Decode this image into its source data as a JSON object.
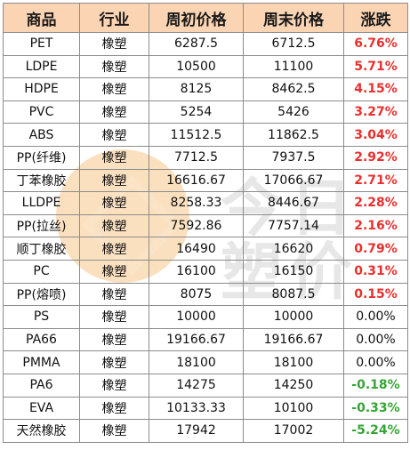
{
  "table": {
    "headers": [
      "商品",
      "行业",
      "周初价格",
      "周末价格",
      "涨跌"
    ],
    "rows": [
      {
        "name": "PET",
        "industry": "橡塑",
        "start": "6287.5",
        "end": "6712.5",
        "change": "6.76%",
        "dir": "pos"
      },
      {
        "name": "LDPE",
        "industry": "橡塑",
        "start": "10500",
        "end": "11100",
        "change": "5.71%",
        "dir": "pos"
      },
      {
        "name": "HDPE",
        "industry": "橡塑",
        "start": "8125",
        "end": "8462.5",
        "change": "4.15%",
        "dir": "pos"
      },
      {
        "name": "PVC",
        "industry": "橡塑",
        "start": "5254",
        "end": "5426",
        "change": "3.27%",
        "dir": "pos"
      },
      {
        "name": "ABS",
        "industry": "橡塑",
        "start": "11512.5",
        "end": "11862.5",
        "change": "3.04%",
        "dir": "pos"
      },
      {
        "name": "PP(纤维)",
        "industry": "橡塑",
        "start": "7712.5",
        "end": "7937.5",
        "change": "2.92%",
        "dir": "pos"
      },
      {
        "name": "丁苯橡胶",
        "industry": "橡塑",
        "start": "16616.67",
        "end": "17066.67",
        "change": "2.71%",
        "dir": "pos"
      },
      {
        "name": "LLDPE",
        "industry": "橡塑",
        "start": "8258.33",
        "end": "8446.67",
        "change": "2.28%",
        "dir": "pos"
      },
      {
        "name": "PP(拉丝)",
        "industry": "橡塑",
        "start": "7592.86",
        "end": "7757.14",
        "change": "2.16%",
        "dir": "pos"
      },
      {
        "name": "顺丁橡胶",
        "industry": "橡塑",
        "start": "16490",
        "end": "16620",
        "change": "0.79%",
        "dir": "pos"
      },
      {
        "name": "PC",
        "industry": "橡塑",
        "start": "16100",
        "end": "16150",
        "change": "0.31%",
        "dir": "pos"
      },
      {
        "name": "PP(熔喷)",
        "industry": "橡塑",
        "start": "8075",
        "end": "8087.5",
        "change": "0.15%",
        "dir": "pos"
      },
      {
        "name": "PS",
        "industry": "橡塑",
        "start": "10000",
        "end": "10000",
        "change": "0.00%",
        "dir": "zero"
      },
      {
        "name": "PA66",
        "industry": "橡塑",
        "start": "19166.67",
        "end": "19166.67",
        "change": "0.00%",
        "dir": "zero"
      },
      {
        "name": "PMMA",
        "industry": "橡塑",
        "start": "18100",
        "end": "18100",
        "change": "0.00%",
        "dir": "zero"
      },
      {
        "name": "PA6",
        "industry": "橡塑",
        "start": "14275",
        "end": "14250",
        "change": "-0.18%",
        "dir": "neg"
      },
      {
        "name": "EVA",
        "industry": "橡塑",
        "start": "10133.33",
        "end": "10100",
        "change": "-0.33%",
        "dir": "neg"
      },
      {
        "name": "天然橡胶",
        "industry": "橡塑",
        "start": "17942",
        "end": "17002",
        "change": "-5.24%",
        "dir": "neg"
      }
    ]
  },
  "watermark": {
    "text": "今日塑价",
    "colors": {
      "circle": "#f6c68a",
      "text": "#bdbdbd"
    }
  },
  "colors": {
    "header_bg": "#fbd4b4",
    "up": "#e8302e",
    "down": "#35a535"
  }
}
